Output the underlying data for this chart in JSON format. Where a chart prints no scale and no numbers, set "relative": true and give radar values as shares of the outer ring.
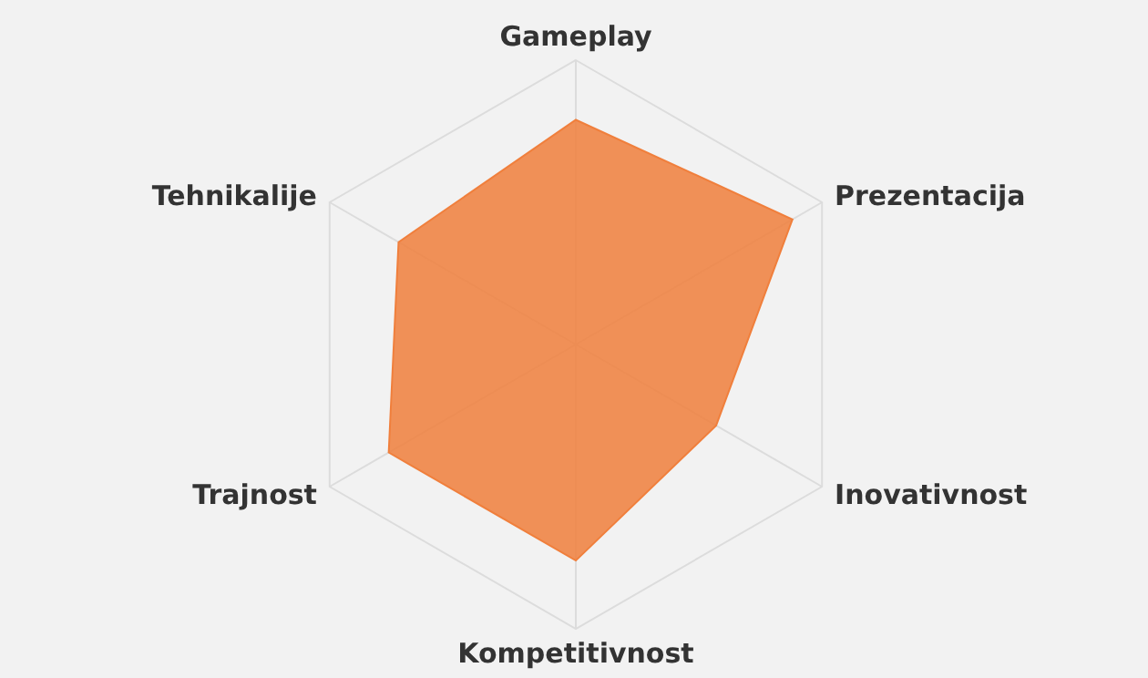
{
  "chart_data": {
    "type": "radar",
    "categories": [
      "Gameplay",
      "Prezentacija",
      "Inovativnost",
      "Kompetitivnost",
      "Trajnost",
      "Tehnikalije"
    ],
    "series": [
      {
        "color": "#f07f3c",
        "values": [
          0.79,
          0.88,
          0.57,
          0.76,
          0.76,
          0.72
        ]
      }
    ],
    "relative": true,
    "grid": true,
    "legend": false
  }
}
